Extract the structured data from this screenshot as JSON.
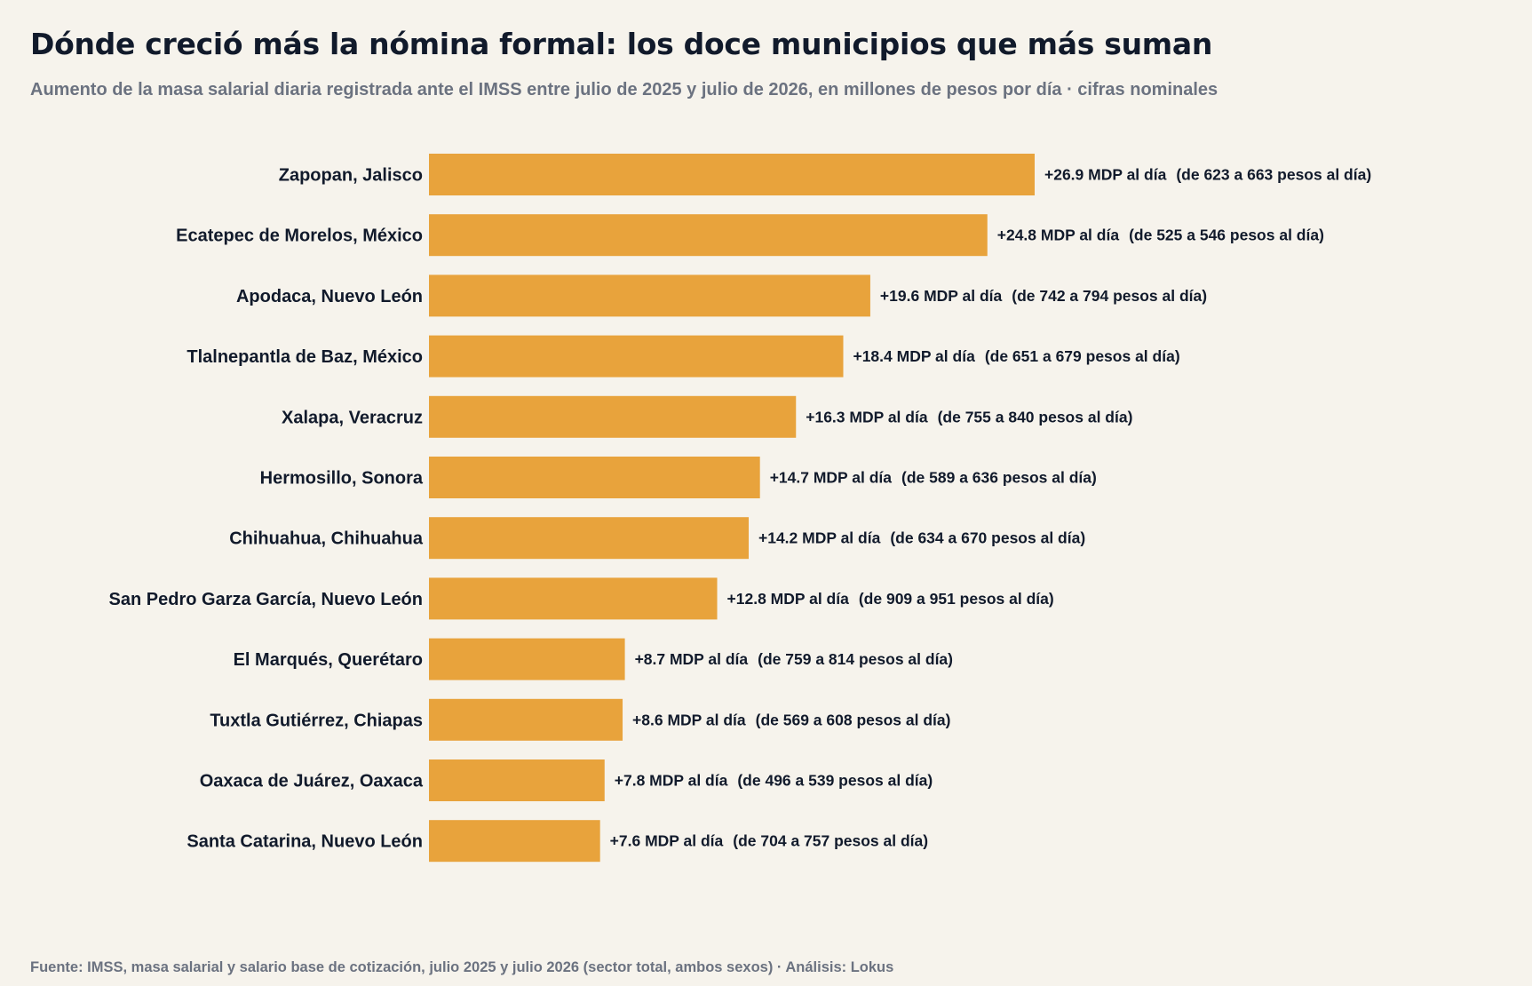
{
  "chart_data": {
    "type": "bar",
    "orientation": "horizontal",
    "title": "Dónde creció más la nómina formal: los doce municipios que más suman",
    "subtitle": "Aumento de la masa salarial diaria registrada ante el IMSS entre julio de 2025 y julio de 2026, en millones de pesos por día · cifras nominales",
    "source": "Fuente: IMSS, masa salarial y salario base de cotización, julio 2025 y julio 2026 (sector total, ambos sexos) · Análisis: Lokus",
    "bar_color": "#e8a33c",
    "categories": [
      "Zapopan, Jalisco",
      "Ecatepec de Morelos, México",
      "Apodaca, Nuevo León",
      "Tlalnepantla de Baz, México",
      "Xalapa, Veracruz",
      "Hermosillo, Sonora",
      "Chihuahua, Chihuahua",
      "San Pedro Garza García, Nuevo León",
      "El Marqués, Querétaro",
      "Tuxtla Gutiérrez, Chiapas",
      "Oaxaca de Juárez, Oaxaca",
      "Santa Catarina, Nuevo León"
    ],
    "values": [
      26.9,
      24.8,
      19.6,
      18.4,
      16.3,
      14.7,
      14.2,
      12.8,
      8.7,
      8.6,
      7.8,
      7.6
    ],
    "value_labels": [
      "+26.9 MDP al día",
      "+24.8 MDP al día",
      "+19.6 MDP al día",
      "+18.4 MDP al día",
      "+16.3 MDP al día",
      "+14.7 MDP al día",
      "+14.2 MDP al día",
      "+12.8 MDP al día",
      "+8.7 MDP al día",
      "+8.6 MDP al día",
      "+7.8 MDP al día",
      "+7.6 MDP al día"
    ],
    "annotations": [
      "(de 623 a 663 pesos al día)",
      "(de 525 a 546 pesos al día)",
      "(de 742 a 794 pesos al día)",
      "(de 651 a 679 pesos al día)",
      "(de 755 a 840 pesos al día)",
      "(de 589 a 636 pesos al día)",
      "(de 634 a 670 pesos al día)",
      "(de 909 a 951 pesos al día)",
      "(de 759 a 814 pesos al día)",
      "(de 569 a 608 pesos al día)",
      "(de 496 a 539 pesos al día)",
      "(de 704 a 757 pesos al día)"
    ],
    "xlim": [
      0,
      26.9
    ],
    "grid": false,
    "legend": "none"
  }
}
